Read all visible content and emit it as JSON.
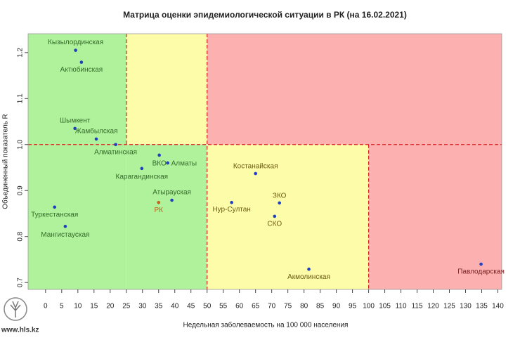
{
  "chart_data": {
    "type": "scatter",
    "title": "Матрица оценки эпидемиологической ситуации в РК (на 16.02.2021)",
    "xlabel": "Недельная заболеваемость на 100 000 населения",
    "ylabel": "Объединенный показатель R",
    "labels": [
      "Кызылординская",
      "Актюбинская",
      "Шымкент",
      "Жамбылская",
      "Алматинская",
      "ВКО",
      "Алматы",
      "Карагандинская",
      "Атырауская",
      "РК",
      "Туркестанская",
      "Мангистауская",
      "Костанайская",
      "ЗКО",
      "Нур-Султан",
      "СКО",
      "Акмолинская",
      "Павлодарская"
    ],
    "x": [
      9.3,
      11.1,
      9.1,
      15.7,
      21.7,
      35.2,
      37.8,
      29.8,
      39.1,
      35.0,
      2.8,
      6.1,
      65.0,
      72.4,
      57.6,
      70.9,
      81.5,
      134.8
    ],
    "values": [
      1.205,
      1.179,
      1.035,
      1.012,
      1.0,
      0.977,
      0.96,
      0.948,
      0.879,
      0.874,
      0.864,
      0.822,
      0.937,
      0.873,
      0.874,
      0.844,
      0.729,
      0.74
    ],
    "colors": [
      "#1f3fbf",
      "#1f3fbf",
      "#1f3fbf",
      "#1f3fbf",
      "#1f3fbf",
      "#1f3fbf",
      "#1f3fbf",
      "#1f3fbf",
      "#1f3fbf",
      "#c0601a",
      "#1f3fbf",
      "#1f3fbf",
      "#1f3fbf",
      "#1f3fbf",
      "#1f3fbf",
      "#1f3fbf",
      "#1f3fbf",
      "#1f3fbf"
    ],
    "xlim": [
      -5.4,
      141.2
    ],
    "ylim": [
      0.685,
      1.241
    ],
    "xticks": [
      0,
      5,
      10,
      15,
      20,
      25,
      30,
      35,
      40,
      45,
      50,
      55,
      60,
      65,
      70,
      75,
      80,
      85,
      90,
      95,
      100,
      105,
      110,
      115,
      120,
      125,
      130,
      135,
      140
    ],
    "yticks": [
      0.7,
      0.8,
      0.9,
      {
        "value": 1,
        "label": "1.0"
      },
      1.1,
      1.2
    ],
    "thresholds": {
      "x": [
        25,
        50,
        100
      ],
      "y": 1
    }
  },
  "footer": "www.hls.kz"
}
